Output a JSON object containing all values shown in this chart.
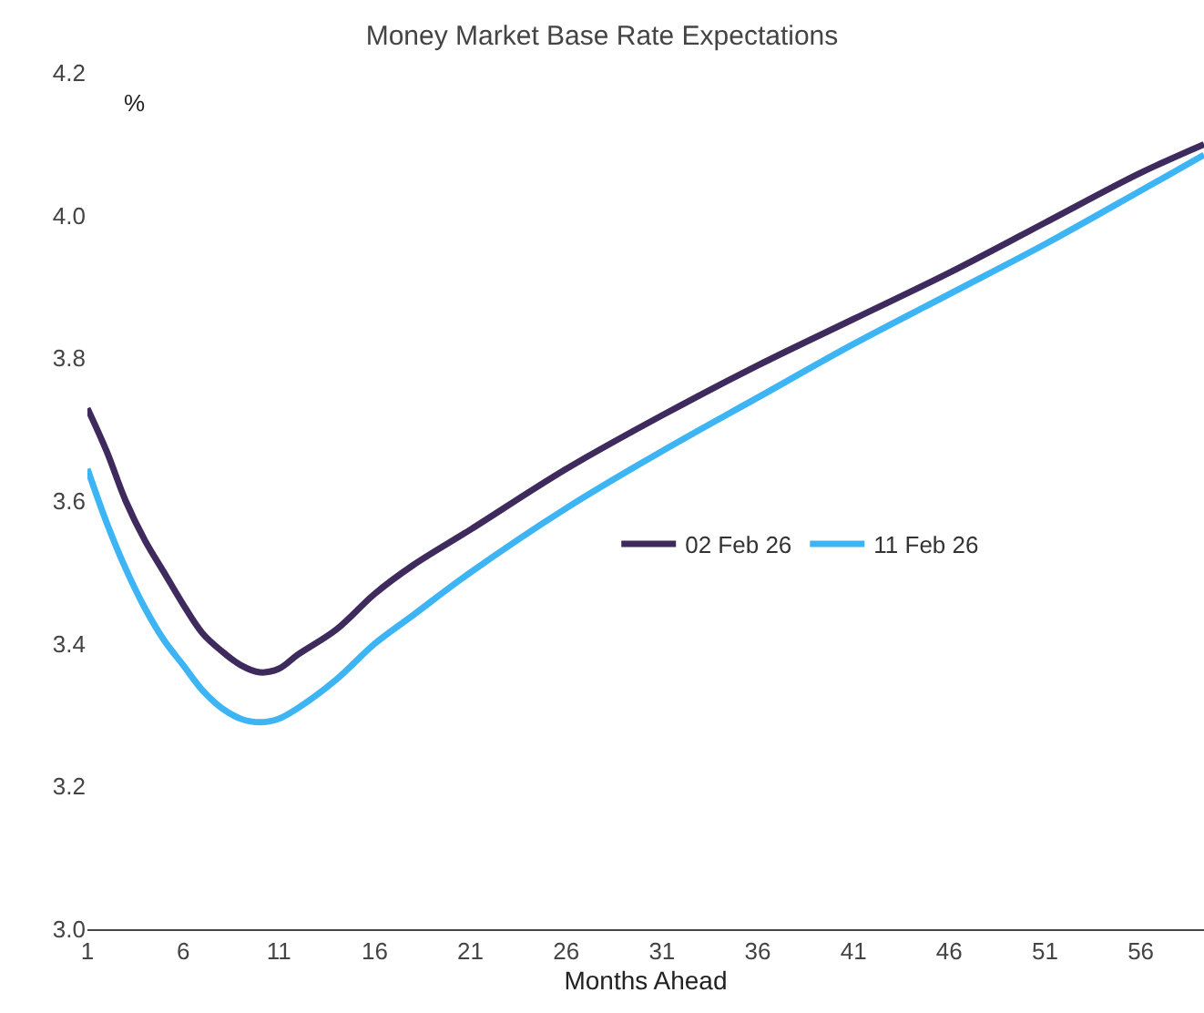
{
  "chart_data": {
    "type": "line",
    "title": "Money Market Base Rate Expectations",
    "xlabel": "Months Ahead",
    "annotations": [
      "%"
    ],
    "xlim": [
      1,
      59.3
    ],
    "xticks": [
      1,
      6,
      11,
      16,
      21,
      26,
      31,
      36,
      41,
      46,
      51,
      56
    ],
    "ylim": [
      3.0,
      4.2
    ],
    "yticks": [
      {
        "value": 3,
        "label": "3.0"
      },
      3.2,
      3.4,
      3.6,
      3.8,
      {
        "value": 4,
        "label": "4.0"
      },
      4.2
    ],
    "legend": "right",
    "marker": "none",
    "line_style": "solid",
    "series": [
      {
        "name": "02 Feb 26",
        "color": "#3f2a5e",
        "x": [
          1,
          2,
          3,
          4,
          5,
          6,
          7,
          8,
          9,
          10,
          11,
          12,
          14,
          16,
          18,
          21,
          26,
          31,
          36,
          41,
          46,
          51,
          56,
          59.3
        ],
        "values": [
          3.73,
          3.67,
          3.6,
          3.545,
          3.5,
          3.455,
          3.415,
          3.39,
          3.37,
          3.36,
          3.365,
          3.385,
          3.42,
          3.47,
          3.51,
          3.56,
          3.645,
          3.72,
          3.79,
          3.855,
          3.92,
          3.99,
          4.06,
          4.1
        ]
      },
      {
        "name": "11 Feb 26",
        "color": "#3db5f5",
        "x": [
          1,
          2,
          3,
          4,
          5,
          6,
          7,
          8,
          9,
          10,
          11,
          12,
          14,
          16,
          18,
          21,
          26,
          31,
          36,
          41,
          46,
          51,
          56,
          59.3
        ],
        "values": [
          3.645,
          3.57,
          3.505,
          3.45,
          3.405,
          3.37,
          3.335,
          3.31,
          3.295,
          3.29,
          3.295,
          3.31,
          3.35,
          3.4,
          3.44,
          3.5,
          3.59,
          3.67,
          3.745,
          3.82,
          3.89,
          3.96,
          4.035,
          4.085
        ]
      }
    ]
  }
}
